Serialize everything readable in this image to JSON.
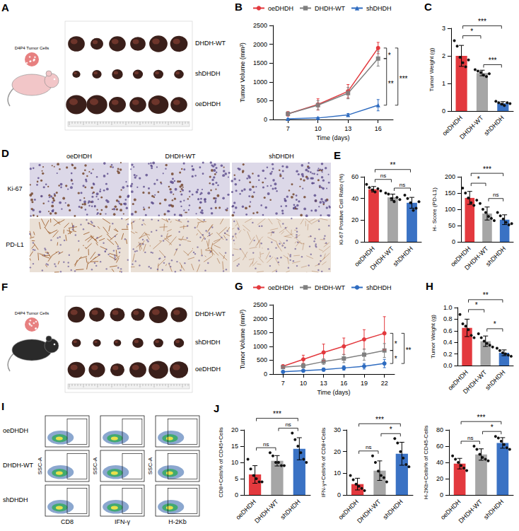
{
  "chart_data": [
    {
      "panel": "B",
      "type": "line",
      "x_label": "Time (days)",
      "y_label": "Tumor Volume (mm³)",
      "categories": [
        "7",
        "10",
        "13",
        "16"
      ],
      "ylim": [
        0,
        2500
      ],
      "yticks": [
        0,
        500,
        1000,
        1500,
        2000,
        2500
      ],
      "grid": false,
      "legend": "top",
      "series": [
        {
          "name": "oeDHDH",
          "color": "#e3393e",
          "marker": "circle",
          "values": [
            150,
            400,
            750,
            1900
          ],
          "errors": [
            60,
            150,
            180,
            150
          ]
        },
        {
          "name": "DHDH-WT",
          "color": "#808080",
          "marker": "square",
          "values": [
            150,
            380,
            700,
            1620
          ],
          "errors": [
            50,
            120,
            150,
            200
          ]
        },
        {
          "name": "shDHDH",
          "color": "#2f6cc0",
          "marker": "triangle",
          "values": [
            20,
            40,
            120,
            380
          ],
          "errors": [
            10,
            20,
            40,
            150
          ]
        }
      ],
      "comparisons": [
        {
          "pair": [
            "oeDHDH",
            "DHDH-WT"
          ],
          "label": "*"
        },
        {
          "pair": [
            "DHDH-WT",
            "shDHDH"
          ],
          "label": "**"
        },
        {
          "pair": [
            "oeDHDH",
            "shDHDH"
          ],
          "label": "***"
        }
      ]
    },
    {
      "panel": "C",
      "type": "bar",
      "y_label": "Tumor Weight (g)",
      "categories": [
        "oeDHDH",
        "DHDH-WT",
        "shDHDH"
      ],
      "colors": [
        "#e3393e",
        "#a6a6a6",
        "#3a72c4"
      ],
      "values": [
        2.0,
        1.38,
        0.28
      ],
      "errors": [
        0.38,
        0.1,
        0.06
      ],
      "points": [
        [
          2.55,
          2.35,
          1.95,
          1.75,
          1.6,
          1.85
        ],
        [
          1.5,
          1.45,
          1.4,
          1.3,
          1.25,
          1.35
        ],
        [
          0.35,
          0.3,
          0.25,
          0.2,
          0.3,
          0.27
        ]
      ],
      "ylim": [
        0,
        3
      ],
      "yticks": [
        0,
        1,
        2,
        3
      ],
      "grid": false,
      "comparisons": [
        {
          "pair": [
            "oeDHDH",
            "DHDH-WT"
          ],
          "label": "*"
        },
        {
          "pair": [
            "DHDH-WT",
            "shDHDH"
          ],
          "label": "***"
        },
        {
          "pair": [
            "oeDHDH",
            "shDHDH"
          ],
          "label": "***"
        }
      ]
    },
    {
      "panel": "E",
      "type": "bar",
      "y_label": "Ki-67 Positive Cell Ratio (%)",
      "categories": [
        "oeDHDH",
        "DHDH-WT",
        "shDHDH"
      ],
      "colors": [
        "#e3393e",
        "#a6a6a6",
        "#3a72c4"
      ],
      "values": [
        48.5,
        41,
        36
      ],
      "errors": [
        2.5,
        3,
        5
      ],
      "points": [
        [
          53,
          50,
          48,
          46,
          49,
          47
        ],
        [
          45,
          44,
          40,
          37,
          41,
          39
        ],
        [
          43,
          40,
          36,
          29,
          31,
          37
        ]
      ],
      "ylim": [
        0,
        60
      ],
      "yticks": [
        0,
        20,
        40,
        60
      ],
      "grid": false,
      "comparisons": [
        {
          "pair": [
            "oeDHDH",
            "DHDH-WT"
          ],
          "label": "ns"
        },
        {
          "pair": [
            "DHDH-WT",
            "shDHDH"
          ],
          "label": "ns"
        },
        {
          "pair": [
            "oeDHDH",
            "shDHDH"
          ],
          "label": "**"
        }
      ]
    },
    {
      "type": "bar",
      "y_label": "H- Score (PD-L1)",
      "categories": [
        "oeDHDH",
        "DHDH-WT",
        "shDHDH"
      ],
      "colors": [
        "#e3393e",
        "#a6a6a6",
        "#3a72c4"
      ],
      "values": [
        135,
        87,
        68
      ],
      "errors": [
        20,
        20,
        15
      ],
      "points": [
        [
          165,
          150,
          135,
          120,
          112,
          128
        ],
        [
          118,
          100,
          90,
          78,
          72,
          65
        ],
        [
          90,
          80,
          70,
          60,
          52,
          56
        ]
      ],
      "ylim": [
        0,
        200
      ],
      "yticks": [
        0,
        50,
        100,
        150,
        200
      ],
      "grid": false,
      "comparisons": [
        {
          "pair": [
            "oeDHDH",
            "DHDH-WT"
          ],
          "label": "*"
        },
        {
          "pair": [
            "DHDH-WT",
            "shDHDH"
          ],
          "label": "ns"
        },
        {
          "pair": [
            "oeDHDH",
            "shDHDH"
          ],
          "label": "***"
        }
      ]
    },
    {
      "panel": "G",
      "type": "line",
      "x_label": "Time (days)",
      "y_label": "Tumor Volume (mm³)",
      "categories": [
        "7",
        "10",
        "13",
        "16",
        "19",
        "22"
      ],
      "ylim": [
        0,
        2500
      ],
      "yticks": [
        0,
        500,
        1000,
        1500,
        2000,
        2500
      ],
      "grid": false,
      "legend": "top",
      "series": [
        {
          "name": "oeDHDH",
          "color": "#e3393e",
          "marker": "circle",
          "values": [
            280,
            530,
            780,
            1000,
            1250,
            1470
          ],
          "errors": [
            50,
            150,
            300,
            300,
            350,
            600
          ]
        },
        {
          "name": "DHDH-WT",
          "color": "#808080",
          "marker": "square",
          "values": [
            250,
            300,
            450,
            560,
            700,
            850
          ],
          "errors": [
            40,
            80,
            100,
            150,
            200,
            250
          ]
        },
        {
          "name": "shDHDH",
          "color": "#2f6cc0",
          "marker": "circle",
          "values": [
            80,
            120,
            160,
            220,
            280,
            380
          ],
          "errors": [
            20,
            40,
            60,
            80,
            100,
            150
          ]
        }
      ],
      "comparisons": [
        {
          "pair": [
            "oeDHDH",
            "DHDH-WT"
          ],
          "label": "*"
        },
        {
          "pair": [
            "DHDH-WT",
            "shDHDH"
          ],
          "label": "*"
        },
        {
          "pair": [
            "oeDHDH",
            "shDHDH"
          ],
          "label": "**"
        }
      ]
    },
    {
      "panel": "H",
      "type": "bar",
      "y_label": "Tumor Weight (g)",
      "categories": [
        "oeDHDH",
        "DHDH-WT",
        "shDHDH"
      ],
      "colors": [
        "#e3393e",
        "#a6a6a6",
        "#3a72c4"
      ],
      "values": [
        0.65,
        0.42,
        0.22
      ],
      "errors": [
        0.15,
        0.09,
        0.05
      ],
      "points": [
        [
          0.88,
          0.72,
          0.68,
          0.62,
          0.52,
          0.48
        ],
        [
          0.55,
          0.48,
          0.42,
          0.38,
          0.35,
          0.32
        ],
        [
          0.3,
          0.26,
          0.22,
          0.2,
          0.18,
          0.16
        ]
      ],
      "ylim": [
        0,
        1
      ],
      "yticks": [
        {
          "value": 0,
          "label": "0.0"
        },
        0.2,
        0.4,
        0.6,
        0.8,
        {
          "value": 1,
          "label": "1.0"
        }
      ],
      "grid": false,
      "comparisons": [
        {
          "pair": [
            "oeDHDH",
            "DHDH-WT"
          ],
          "label": "*"
        },
        {
          "pair": [
            "DHDH-WT",
            "shDHDH"
          ],
          "label": "*"
        },
        {
          "pair": [
            "oeDHDH",
            "shDHDH"
          ],
          "label": "**"
        }
      ]
    },
    {
      "panel": "J",
      "type": "bar",
      "y_label": "CD8+Cells% of CD45+Cells",
      "categories": [
        "oeDHDH",
        "DHDH-WT",
        "shDHDH"
      ],
      "colors": [
        "#e3393e",
        "#a6a6a6",
        "#3a72c4"
      ],
      "values": [
        6.3,
        10.5,
        14.2
      ],
      "errors": [
        2.7,
        1.6,
        3.4
      ],
      "points": [
        [
          11,
          8,
          6,
          5,
          4,
          4
        ],
        [
          13,
          12,
          10,
          10,
          9,
          9
        ],
        [
          19,
          17,
          15,
          13,
          11,
          10
        ]
      ],
      "ylim": [
        0,
        20
      ],
      "yticks": [
        0,
        5,
        10,
        15,
        20
      ],
      "grid": false,
      "comparisons": [
        {
          "pair": [
            "oeDHDH",
            "DHDH-WT"
          ],
          "label": "ns"
        },
        {
          "pair": [
            "DHDH-WT",
            "shDHDH"
          ],
          "label": "ns"
        },
        {
          "pair": [
            "oeDHDH",
            "shDHDH"
          ],
          "label": "***"
        }
      ]
    },
    {
      "type": "bar",
      "y_label": "IFN-γ+Cells% of CD8+Cells",
      "categories": [
        "oeDHDH",
        "DHDH-WT",
        "shDHDH"
      ],
      "colors": [
        "#e3393e",
        "#a6a6a6",
        "#3a72c4"
      ],
      "values": [
        5,
        11.2,
        19
      ],
      "errors": [
        2.7,
        4.5,
        5.3
      ],
      "points": [
        [
          9,
          7,
          5,
          4,
          3,
          2
        ],
        [
          18,
          15,
          11,
          9,
          8,
          6
        ],
        [
          26,
          24,
          20,
          17,
          14,
          13
        ]
      ],
      "ylim": [
        0,
        30
      ],
      "yticks": [
        0,
        10,
        20,
        30
      ],
      "grid": false,
      "comparisons": [
        {
          "pair": [
            "oeDHDH",
            "DHDH-WT"
          ],
          "label": "ns"
        },
        {
          "pair": [
            "DHDH-WT",
            "shDHDH"
          ],
          "label": "*"
        },
        {
          "pair": [
            "oeDHDH",
            "shDHDH"
          ],
          "label": "***"
        }
      ]
    },
    {
      "type": "bar",
      "y_label": "H-2Kb+Cells% of CD45-Cells",
      "categories": [
        "oeDHDH",
        "DHDH-WT",
        "shDHDH"
      ],
      "colors": [
        "#e3393e",
        "#a6a6a6",
        "#3a72c4"
      ],
      "values": [
        38.5,
        49.7,
        64
      ],
      "errors": [
        6.5,
        7,
        6.5
      ],
      "points": [
        [
          48,
          44,
          40,
          36,
          33,
          30
        ],
        [
          60,
          56,
          50,
          46,
          44,
          42
        ],
        [
          72,
          70,
          66,
          62,
          58,
          56
        ]
      ],
      "ylim": [
        0,
        80
      ],
      "yticks": [
        0,
        20,
        40,
        60,
        80
      ],
      "grid": false,
      "comparisons": [
        {
          "pair": [
            "oeDHDH",
            "DHDH-WT"
          ],
          "label": "ns"
        },
        {
          "pair": [
            "DHDH-WT",
            "shDHDH"
          ],
          "label": "*"
        },
        {
          "pair": [
            "oeDHDH",
            "shDHDH"
          ],
          "label": "***"
        }
      ]
    }
  ],
  "images": {
    "A": {
      "panel": "A",
      "icon_label": "D4P4 Tumor Cells",
      "rows": [
        "DHDH-WT",
        "shDHDH",
        "oeDHDH"
      ]
    },
    "D": {
      "panel": "D",
      "columns": [
        "oeDHDH",
        "DHDH-WT",
        "shDHDH"
      ],
      "rows": [
        "Ki-67",
        "PD-L1"
      ]
    },
    "F": {
      "panel": "F",
      "icon_label": "D4P4 Tumor Cells",
      "rows": [
        "DHDH-WT",
        "shDHDH",
        "oeDHDH"
      ]
    },
    "I": {
      "panel": "I",
      "rows": [
        "oeDHDH",
        "DHDH-WT",
        "shDHDH"
      ],
      "columns": [
        "CD8",
        "IFN-γ",
        "H-2Kb"
      ],
      "y_label": "SSC-A"
    }
  }
}
